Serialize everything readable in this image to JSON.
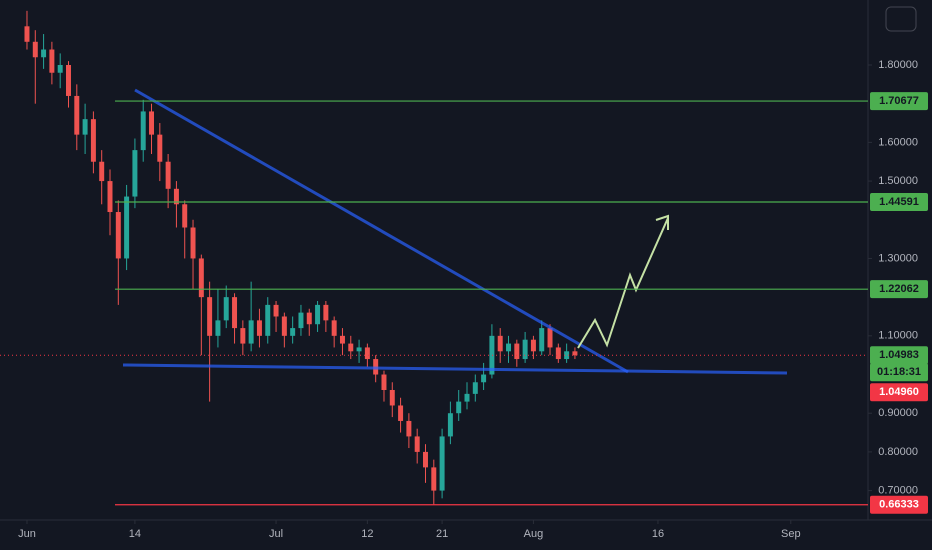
{
  "chart_data": {
    "type": "candlestick",
    "up_color": "#26a69a",
    "down_color": "#ef5350",
    "x": [
      0,
      1,
      2,
      3,
      4,
      5,
      6,
      7,
      8,
      9,
      10,
      11,
      12,
      13,
      14,
      15,
      16,
      17,
      18,
      19,
      20,
      21,
      22,
      23,
      24,
      25,
      26,
      27,
      28,
      29,
      30,
      31,
      32,
      33,
      34,
      35,
      36,
      37,
      38,
      39,
      40,
      41,
      42,
      43,
      44,
      45,
      46,
      47,
      48,
      49,
      50,
      51,
      52,
      53,
      54,
      55,
      56,
      57,
      58,
      59,
      60,
      61,
      62,
      63,
      64,
      65,
      66
    ],
    "open": [
      1.9,
      1.86,
      1.82,
      1.84,
      1.78,
      1.8,
      1.72,
      1.62,
      1.66,
      1.55,
      1.5,
      1.42,
      1.3,
      1.46,
      1.58,
      1.68,
      1.62,
      1.55,
      1.48,
      1.44,
      1.38,
      1.3,
      1.2,
      1.1,
      1.14,
      1.2,
      1.12,
      1.08,
      1.14,
      1.1,
      1.18,
      1.15,
      1.1,
      1.12,
      1.16,
      1.13,
      1.18,
      1.14,
      1.1,
      1.08,
      1.06,
      1.07,
      1.04,
      1.0,
      0.96,
      0.92,
      0.88,
      0.84,
      0.8,
      0.76,
      0.7,
      0.84,
      0.9,
      0.93,
      0.95,
      0.98,
      1.0,
      1.1,
      1.06,
      1.08,
      1.04,
      1.09,
      1.06,
      1.12,
      1.07,
      1.04,
      1.06
    ],
    "high": [
      1.94,
      1.89,
      1.88,
      1.86,
      1.83,
      1.81,
      1.75,
      1.7,
      1.68,
      1.58,
      1.53,
      1.45,
      1.49,
      1.61,
      1.71,
      1.7,
      1.65,
      1.57,
      1.5,
      1.45,
      1.4,
      1.31,
      1.24,
      1.22,
      1.23,
      1.21,
      1.14,
      1.24,
      1.17,
      1.2,
      1.19,
      1.16,
      1.15,
      1.18,
      1.17,
      1.19,
      1.19,
      1.15,
      1.12,
      1.1,
      1.09,
      1.08,
      1.05,
      1.01,
      0.98,
      0.94,
      0.9,
      0.86,
      0.82,
      0.78,
      0.86,
      0.93,
      0.96,
      0.98,
      1.0,
      1.03,
      1.13,
      1.12,
      1.1,
      1.09,
      1.11,
      1.1,
      1.14,
      1.13,
      1.08,
      1.08,
      1.07
    ],
    "low": [
      1.84,
      1.7,
      1.79,
      1.75,
      1.74,
      1.69,
      1.58,
      1.57,
      1.52,
      1.44,
      1.36,
      1.18,
      1.27,
      1.43,
      1.55,
      1.57,
      1.5,
      1.43,
      1.38,
      1.3,
      1.22,
      1.05,
      0.93,
      1.07,
      1.12,
      1.08,
      1.05,
      1.06,
      1.07,
      1.08,
      1.11,
      1.07,
      1.08,
      1.1,
      1.1,
      1.11,
      1.11,
      1.07,
      1.05,
      1.04,
      1.03,
      1.02,
      0.98,
      0.93,
      0.89,
      0.85,
      0.81,
      0.77,
      0.72,
      0.66333,
      0.68,
      0.82,
      0.88,
      0.91,
      0.93,
      0.96,
      0.99,
      1.03,
      1.03,
      1.02,
      1.03,
      1.04,
      1.05,
      1.05,
      1.03,
      1.03,
      1.04
    ],
    "close": [
      1.86,
      1.82,
      1.84,
      1.78,
      1.8,
      1.72,
      1.62,
      1.66,
      1.55,
      1.5,
      1.42,
      1.3,
      1.46,
      1.58,
      1.68,
      1.62,
      1.55,
      1.48,
      1.44,
      1.38,
      1.3,
      1.2,
      1.1,
      1.14,
      1.2,
      1.12,
      1.08,
      1.14,
      1.1,
      1.18,
      1.15,
      1.1,
      1.12,
      1.16,
      1.13,
      1.18,
      1.14,
      1.1,
      1.08,
      1.06,
      1.07,
      1.04,
      1.0,
      0.96,
      0.92,
      0.88,
      0.84,
      0.8,
      0.76,
      0.7,
      0.84,
      0.9,
      0.93,
      0.95,
      0.98,
      1.0,
      1.1,
      1.06,
      1.08,
      1.04,
      1.09,
      1.06,
      1.12,
      1.07,
      1.04,
      1.06,
      1.0496
    ],
    "xlim": [
      -3.25,
      101.3
    ],
    "xticks": [
      {
        "value": 0,
        "label": "Jun"
      },
      {
        "value": 13,
        "label": "14"
      },
      {
        "value": 30,
        "label": "Jul"
      },
      {
        "value": 41,
        "label": "12"
      },
      {
        "value": 50,
        "label": "21"
      },
      {
        "value": 61,
        "label": "Aug"
      },
      {
        "value": 76,
        "label": "16"
      },
      {
        "value": 92,
        "label": "Sep"
      }
    ],
    "ylim": [
      0.624,
      1.968
    ],
    "yticks": [
      {
        "value": 1.8,
        "label": "1.80000"
      },
      {
        "value": 1.6,
        "label": "1.60000"
      },
      {
        "value": 1.5,
        "label": "1.50000"
      },
      {
        "value": 1.3,
        "label": "1.30000"
      },
      {
        "value": 1.1,
        "label": "1.10000"
      },
      {
        "value": 0.9,
        "label": "0.90000"
      },
      {
        "value": 0.8,
        "label": "0.80000"
      },
      {
        "value": 0.7,
        "label": "0.70000"
      }
    ],
    "levels": [
      {
        "value": 1.70677,
        "color": "#4caf50"
      },
      {
        "value": 1.44591,
        "color": "#4caf50"
      },
      {
        "value": 1.22062,
        "color": "#4caf50"
      },
      {
        "value": 0.66333,
        "color": "#f23645"
      }
    ],
    "last_price": {
      "value": 1.04983,
      "color": "#4caf50"
    },
    "countdown": "01:18:31",
    "bid_price": {
      "value": 1.0496,
      "label": "1.04960",
      "color": "#f23645"
    }
  }
}
